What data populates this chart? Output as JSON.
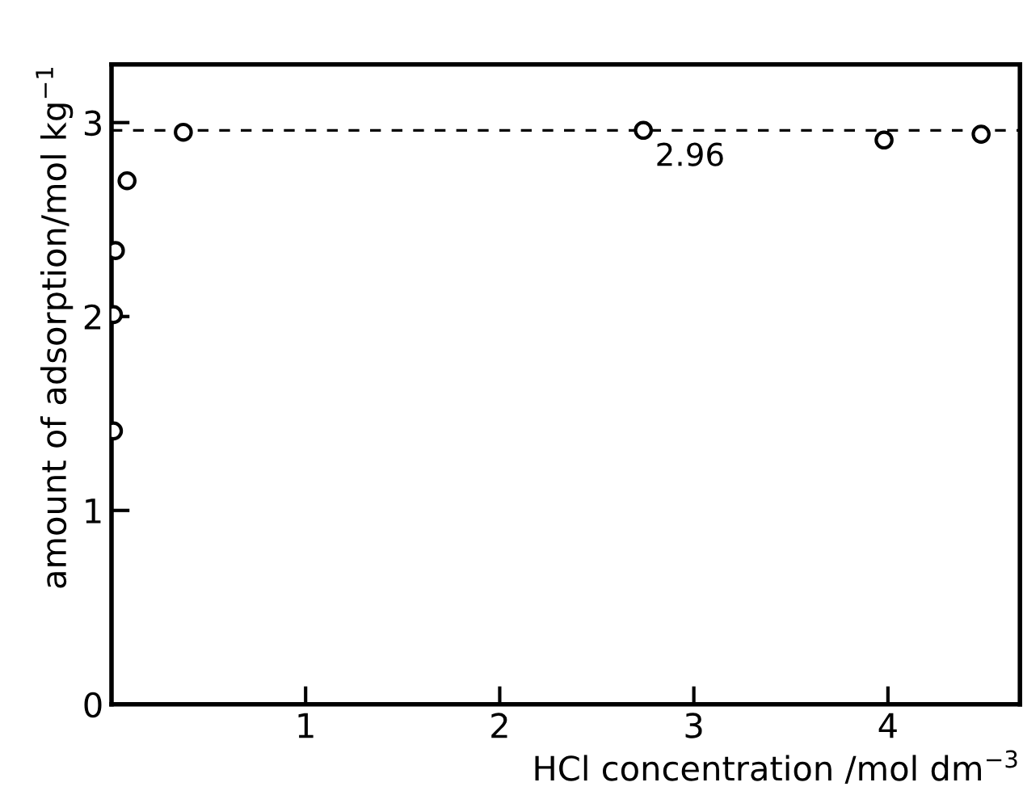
{
  "chart_data": {
    "type": "scatter",
    "xlabel": "HCl concentration /mol dm$^{−3}$",
    "ylabel": "amount of adsorption/mol kg$^{−1}$",
    "x": [
      0.01,
      0.01,
      0.02,
      0.08,
      0.37,
      2.74,
      3.98,
      4.48
    ],
    "values": [
      1.41,
      2.01,
      2.34,
      2.7,
      2.95,
      2.96,
      2.91,
      2.94
    ],
    "color": "#000000",
    "marker": "circle",
    "xlim": [
      0,
      4.68
    ],
    "ylim": [
      0,
      3.3
    ],
    "xticks": [
      1,
      2,
      3,
      4
    ],
    "yticks": [
      0,
      1,
      2,
      3
    ],
    "ref_lines": [
      {
        "axis": "y",
        "value": 2.96,
        "label": "2.96",
        "line_style": "dashed",
        "color": "#000000"
      }
    ],
    "grid": false
  }
}
